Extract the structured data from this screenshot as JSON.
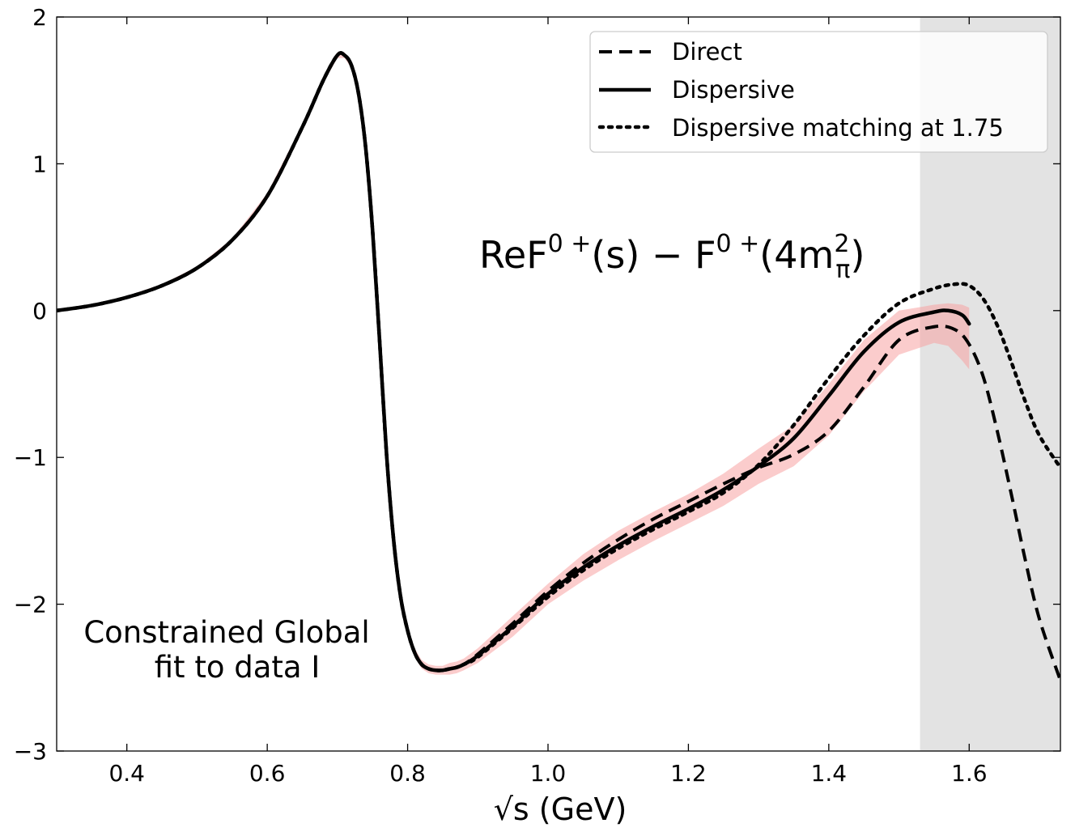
{
  "chart_data": {
    "type": "line",
    "title": "",
    "xlabel": "√s (GeV)",
    "ylabel": "",
    "xlim": [
      0.3,
      1.73
    ],
    "ylim": [
      -3,
      2
    ],
    "x_ticks": [
      0.4,
      0.6,
      0.8,
      1.0,
      1.2,
      1.4,
      1.6
    ],
    "x_tick_labels": [
      "0.4",
      "0.6",
      "0.8",
      "1.0",
      "1.2",
      "1.4",
      "1.6"
    ],
    "y_ticks": [
      -3,
      -2,
      -1,
      0,
      1,
      2
    ],
    "y_tick_labels": [
      "−3",
      "−2",
      "−1",
      "0",
      "1",
      "2"
    ],
    "shaded_region": {
      "x_from": 1.53,
      "x_to": 1.73,
      "color": "#e3e3e3"
    },
    "band_color": "#f7a3a3",
    "legend": {
      "position": "top-right",
      "entries": [
        "Direct",
        "Dispersive",
        "Dispersive matching at 1.75"
      ]
    },
    "formula": {
      "text": "ReF",
      "sup1": "0 +",
      "mid": "(s) − F",
      "sup2": "0 +",
      "open": "(4m",
      "sub": "π",
      "sup3": "2",
      "close": ")"
    },
    "annotation": [
      "Constrained Global",
      "fit to data I"
    ],
    "series": [
      {
        "name": "Direct",
        "style": "dashed",
        "x": [
          0.3,
          0.35,
          0.4,
          0.45,
          0.5,
          0.55,
          0.6,
          0.65,
          0.68,
          0.7,
          0.71,
          0.72,
          0.73,
          0.74,
          0.75,
          0.76,
          0.77,
          0.78,
          0.79,
          0.8,
          0.81,
          0.82,
          0.83,
          0.84,
          0.85,
          0.86,
          0.87,
          0.88,
          0.9,
          0.95,
          1.0,
          1.05,
          1.1,
          1.15,
          1.2,
          1.25,
          1.3,
          1.35,
          1.4,
          1.45,
          1.5,
          1.55,
          1.58,
          1.6,
          1.62,
          1.64,
          1.66,
          1.68,
          1.7,
          1.73
        ],
        "y": [
          0.0,
          0.035,
          0.09,
          0.17,
          0.29,
          0.48,
          0.78,
          1.25,
          1.57,
          1.74,
          1.74,
          1.67,
          1.48,
          1.12,
          0.55,
          -0.2,
          -0.98,
          -1.56,
          -1.95,
          -2.18,
          -2.33,
          -2.41,
          -2.44,
          -2.45,
          -2.45,
          -2.44,
          -2.43,
          -2.41,
          -2.34,
          -2.13,
          -1.91,
          -1.72,
          -1.56,
          -1.42,
          -1.3,
          -1.18,
          -1.07,
          -0.98,
          -0.82,
          -0.52,
          -0.2,
          -0.11,
          -0.13,
          -0.23,
          -0.45,
          -0.82,
          -1.25,
          -1.7,
          -2.1,
          -2.52
        ]
      },
      {
        "name": "Dispersive",
        "style": "solid",
        "x": [
          0.3,
          0.35,
          0.4,
          0.45,
          0.5,
          0.55,
          0.6,
          0.65,
          0.68,
          0.7,
          0.71,
          0.72,
          0.73,
          0.74,
          0.75,
          0.76,
          0.77,
          0.78,
          0.79,
          0.8,
          0.81,
          0.82,
          0.83,
          0.84,
          0.85,
          0.86,
          0.87,
          0.88,
          0.9,
          0.95,
          1.0,
          1.05,
          1.1,
          1.15,
          1.2,
          1.25,
          1.3,
          1.35,
          1.4,
          1.45,
          1.5,
          1.55,
          1.57,
          1.59,
          1.6
        ],
        "y": [
          0.0,
          0.035,
          0.09,
          0.17,
          0.29,
          0.48,
          0.78,
          1.25,
          1.57,
          1.74,
          1.74,
          1.67,
          1.48,
          1.12,
          0.55,
          -0.2,
          -0.98,
          -1.56,
          -1.95,
          -2.18,
          -2.33,
          -2.41,
          -2.44,
          -2.45,
          -2.45,
          -2.44,
          -2.43,
          -2.41,
          -2.35,
          -2.15,
          -1.93,
          -1.75,
          -1.6,
          -1.47,
          -1.35,
          -1.22,
          -1.06,
          -0.87,
          -0.58,
          -0.28,
          -0.08,
          -0.01,
          0.0,
          -0.03,
          -0.09
        ]
      },
      {
        "name": "Dispersive matching at 1.75",
        "style": "dotted",
        "x": [
          0.3,
          0.35,
          0.4,
          0.45,
          0.5,
          0.55,
          0.6,
          0.65,
          0.68,
          0.7,
          0.71,
          0.72,
          0.73,
          0.74,
          0.75,
          0.76,
          0.77,
          0.78,
          0.79,
          0.8,
          0.81,
          0.82,
          0.83,
          0.84,
          0.85,
          0.86,
          0.87,
          0.88,
          0.9,
          0.95,
          1.0,
          1.05,
          1.1,
          1.15,
          1.2,
          1.25,
          1.3,
          1.35,
          1.4,
          1.45,
          1.5,
          1.55,
          1.58,
          1.6,
          1.62,
          1.64,
          1.66,
          1.68,
          1.7,
          1.73
        ],
        "y": [
          0.0,
          0.035,
          0.09,
          0.17,
          0.29,
          0.48,
          0.78,
          1.25,
          1.57,
          1.74,
          1.74,
          1.67,
          1.48,
          1.12,
          0.55,
          -0.2,
          -0.98,
          -1.56,
          -1.95,
          -2.18,
          -2.33,
          -2.41,
          -2.44,
          -2.45,
          -2.45,
          -2.44,
          -2.43,
          -2.41,
          -2.36,
          -2.16,
          -1.95,
          -1.77,
          -1.62,
          -1.49,
          -1.37,
          -1.24,
          -1.05,
          -0.78,
          -0.46,
          -0.17,
          0.05,
          0.15,
          0.18,
          0.17,
          0.08,
          -0.1,
          -0.35,
          -0.62,
          -0.85,
          -1.07
        ]
      }
    ],
    "uncertainty_band": {
      "x": [
        0.3,
        0.35,
        0.4,
        0.45,
        0.5,
        0.55,
        0.6,
        0.65,
        0.68,
        0.7,
        0.71,
        0.72,
        0.73,
        0.74,
        0.75,
        0.76,
        0.77,
        0.78,
        0.79,
        0.8,
        0.81,
        0.82,
        0.83,
        0.84,
        0.85,
        0.86,
        0.87,
        0.88,
        0.9,
        0.95,
        1.0,
        1.05,
        1.1,
        1.15,
        1.2,
        1.25,
        1.3,
        1.35,
        1.4,
        1.45,
        1.5,
        1.55,
        1.57,
        1.59,
        1.6
      ],
      "lower": [
        0.0,
        0.03,
        0.08,
        0.16,
        0.28,
        0.47,
        0.76,
        1.23,
        1.55,
        1.72,
        1.72,
        1.65,
        1.46,
        1.1,
        0.53,
        -0.22,
        -1.0,
        -1.58,
        -1.98,
        -2.21,
        -2.36,
        -2.44,
        -2.47,
        -2.48,
        -2.48,
        -2.48,
        -2.47,
        -2.45,
        -2.4,
        -2.22,
        -2.0,
        -1.84,
        -1.7,
        -1.57,
        -1.45,
        -1.33,
        -1.18,
        -1.06,
        -0.85,
        -0.55,
        -0.3,
        -0.22,
        -0.24,
        -0.34,
        -0.4
      ],
      "upper": [
        0.01,
        0.04,
        0.1,
        0.18,
        0.3,
        0.49,
        0.8,
        1.27,
        1.59,
        1.76,
        1.76,
        1.69,
        1.5,
        1.14,
        0.57,
        -0.18,
        -0.96,
        -1.54,
        -1.92,
        -2.15,
        -2.3,
        -2.38,
        -2.41,
        -2.42,
        -2.42,
        -2.4,
        -2.39,
        -2.37,
        -2.3,
        -2.08,
        -1.86,
        -1.66,
        -1.5,
        -1.37,
        -1.25,
        -1.11,
        -0.94,
        -0.78,
        -0.5,
        -0.2,
        0.0,
        0.04,
        0.05,
        0.04,
        0.02
      ]
    }
  }
}
